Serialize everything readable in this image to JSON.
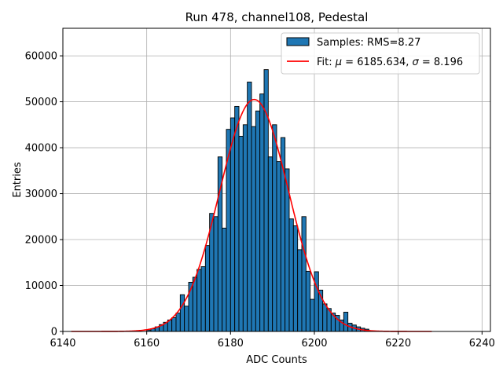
{
  "chart_data": {
    "type": "bar",
    "title": "Run 478, channel108, Pedestal",
    "xlabel": "ADC Counts",
    "ylabel": "Entries",
    "xlim": [
      6140,
      6242
    ],
    "ylim": [
      0,
      66000
    ],
    "xticks": [
      6140,
      6160,
      6180,
      6200,
      6220,
      6240
    ],
    "yticks": [
      0,
      10000,
      20000,
      30000,
      40000,
      50000,
      60000
    ],
    "grid": true,
    "legend_position": "top-right",
    "colors": {
      "bars": "#1f77b4",
      "bar_edge": "#000000",
      "fit": "#ff0000",
      "grid": "#b0b0b0"
    },
    "histogram": {
      "name": "Samples: RMS=8.27",
      "bin_edges_start": 6160,
      "bin_width": 1,
      "values": [
        300,
        600,
        1000,
        1500,
        2000,
        2500,
        3000,
        4000,
        8000,
        5500,
        10700,
        11800,
        13500,
        14100,
        18700,
        25700,
        25000,
        38000,
        22500,
        44000,
        46500,
        49000,
        42500,
        45000,
        54300,
        44600,
        48000,
        51700,
        57000,
        38000,
        45000,
        37000,
        42200,
        35400,
        24500,
        23000,
        17800,
        25000,
        13100,
        7000,
        13000,
        9000,
        6000,
        5000,
        4000,
        3500,
        2500,
        4200,
        1800,
        1400,
        1000,
        700,
        500
      ]
    },
    "fit": {
      "name": "Fit: $\\mu$ = 6185.634, $\\sigma$ = 8.196",
      "legend_prefix": "Fit: ",
      "mu_symbol": "μ",
      "mu_value": " = 6185.634, ",
      "sigma_symbol": "σ",
      "sigma_value": " = 8.196",
      "mu": 6185.634,
      "sigma": 8.196,
      "amplitude": 50500,
      "x_range": [
        6142,
        6228
      ]
    }
  }
}
